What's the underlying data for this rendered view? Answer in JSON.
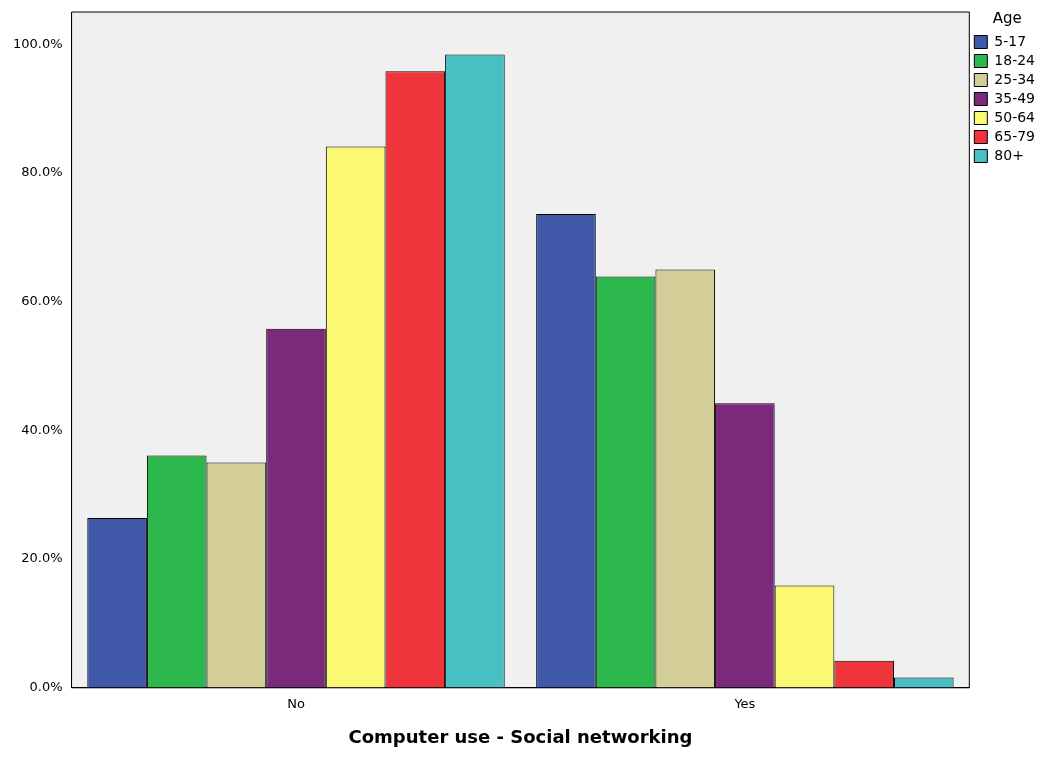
{
  "chart_data": {
    "type": "bar",
    "xlabel": "Computer use - Social networking",
    "legend_title": "Age",
    "legend": "right",
    "categories": [
      "No",
      "Yes"
    ],
    "series": [
      {
        "name": "5-17",
        "color": "#3f58a8",
        "values": [
          26.4,
          73.6
        ]
      },
      {
        "name": "18-24",
        "color": "#2db84d",
        "values": [
          36.1,
          63.9
        ]
      },
      {
        "name": "25-34",
        "color": "#d3ce97",
        "values": [
          35.0,
          65.0
        ]
      },
      {
        "name": "35-49",
        "color": "#7b2a7b",
        "values": [
          55.8,
          44.2
        ]
      },
      {
        "name": "50-64",
        "color": "#fbf873",
        "values": [
          84.1,
          15.9
        ]
      },
      {
        "name": "65-79",
        "color": "#ef353b",
        "values": [
          95.8,
          4.2
        ]
      },
      {
        "name": "80+",
        "color": "#48c0c4",
        "values": [
          98.4,
          1.6
        ]
      }
    ],
    "ylim": [
      0,
      105
    ],
    "yticks": [
      {
        "value": 0,
        "label": "0.0%"
      },
      {
        "value": 20,
        "label": "20.0%"
      },
      {
        "value": 40,
        "label": "40.0%"
      },
      {
        "value": 60,
        "label": "60.0%"
      },
      {
        "value": 80,
        "label": "80.0%"
      },
      {
        "value": 100,
        "label": "100.0%"
      }
    ],
    "grid": false
  }
}
